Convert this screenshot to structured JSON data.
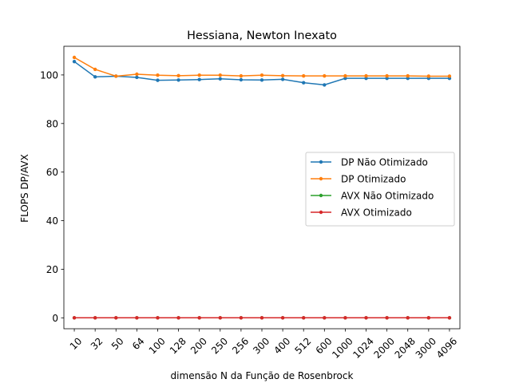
{
  "chart_data": {
    "type": "line",
    "title": "Hessiana, Newton Inexato",
    "xlabel": "dimensão N da Função de Rosenbrock",
    "ylabel": "FLOPS DP/AVX",
    "categories": [
      "10",
      "32",
      "50",
      "64",
      "100",
      "128",
      "200",
      "250",
      "256",
      "300",
      "400",
      "512",
      "600",
      "1000",
      "1024",
      "2000",
      "2048",
      "3000",
      "4096"
    ],
    "yticks": [
      0,
      20,
      40,
      60,
      80,
      100
    ],
    "ylim": [
      -4.5,
      111.8
    ],
    "grid": false,
    "legend_position": "center-right",
    "series": [
      {
        "name": "DP Não Otimizado",
        "color": "#1f77b4",
        "values": [
          105.5,
          99.2,
          99.5,
          99.0,
          97.8,
          97.9,
          98.1,
          98.4,
          98.0,
          97.9,
          98.2,
          96.8,
          95.9,
          98.6,
          98.6,
          98.6,
          98.6,
          98.6,
          98.6
        ]
      },
      {
        "name": "DP Otimizado",
        "color": "#ff7f0e",
        "values": [
          107.2,
          102.3,
          99.5,
          100.3,
          99.9,
          99.7,
          99.9,
          99.9,
          99.6,
          99.9,
          99.7,
          99.6,
          99.6,
          99.6,
          99.6,
          99.6,
          99.6,
          99.5,
          99.5
        ]
      },
      {
        "name": "AVX Não Otimizado",
        "color": "#2ca02c",
        "values": [
          0,
          0,
          0,
          0,
          0,
          0,
          0,
          0,
          0,
          0,
          0,
          0,
          0,
          0,
          0,
          0,
          0,
          0,
          0
        ]
      },
      {
        "name": "AVX Otimizado",
        "color": "#d62728",
        "values": [
          0,
          0,
          0,
          0,
          0,
          0,
          0,
          0,
          0,
          0,
          0,
          0,
          0,
          0,
          0,
          0,
          0,
          0,
          0
        ]
      }
    ]
  }
}
